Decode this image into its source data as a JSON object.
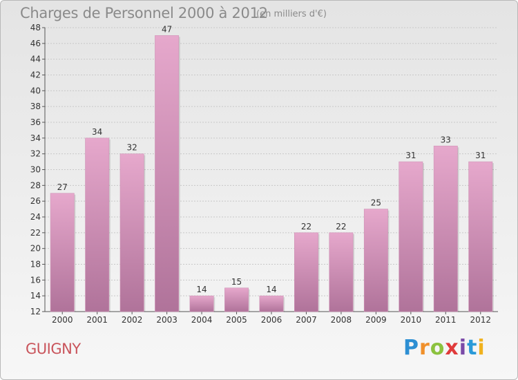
{
  "header": {
    "title": "Charges de Personnel 2000 à 2012",
    "subtitle": "(en milliers d'€)"
  },
  "footer": {
    "place": "GUIGNY",
    "logo_text": "Proxiti"
  },
  "colors": {
    "bar_light": "#e6a8cc",
    "bar_dark": "#b0739a",
    "grid": "#c8c8c8"
  },
  "chart_data": {
    "type": "bar",
    "title": "Charges de Personnel 2000 à 2012",
    "subtitle": "(en milliers d'€)",
    "categories": [
      "2000",
      "2001",
      "2002",
      "2003",
      "2004",
      "2005",
      "2006",
      "2007",
      "2008",
      "2009",
      "2010",
      "2011",
      "2012"
    ],
    "values": [
      27,
      34,
      32,
      47,
      14,
      15,
      14,
      22,
      22,
      25,
      31,
      33,
      31
    ],
    "xlabel": "",
    "ylabel": "",
    "ylim": [
      12,
      48
    ],
    "yticks": [
      12,
      14,
      16,
      18,
      20,
      22,
      24,
      26,
      28,
      30,
      32,
      34,
      36,
      38,
      40,
      42,
      44,
      46,
      48
    ],
    "grid": true,
    "legend": "none"
  }
}
